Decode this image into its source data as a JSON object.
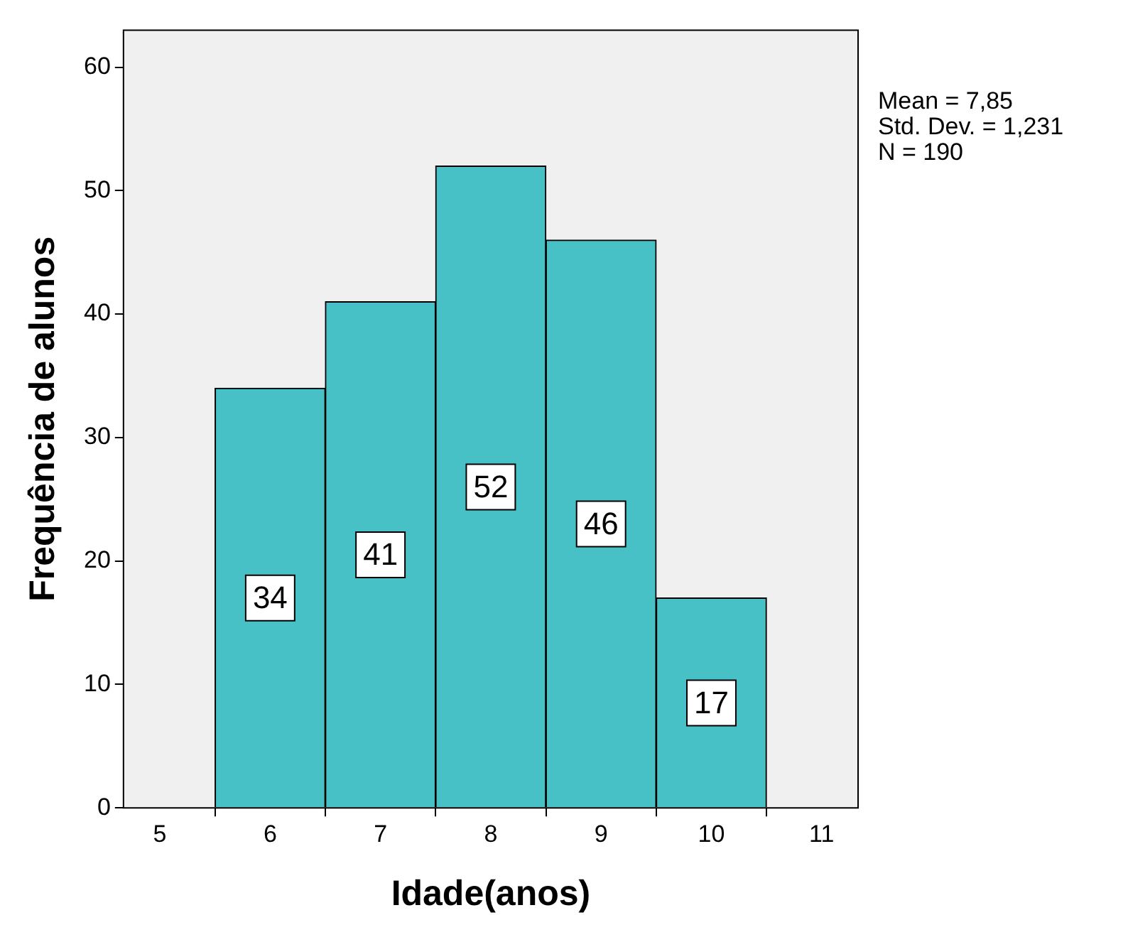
{
  "chart_data": {
    "type": "histogram",
    "xlabel": "Idade(anos)",
    "ylabel": "Frequência de alunos",
    "bins": [
      5.5,
      6.5,
      7.5,
      8.5,
      9.5,
      10.5
    ],
    "values": [
      34,
      41,
      52,
      46,
      17
    ],
    "color": "#48c1c6",
    "xlim": [
      4.67,
      11.33
    ],
    "xticks": [
      5,
      6,
      7,
      8,
      9,
      10,
      11
    ],
    "ylim": [
      0,
      63
    ],
    "yticks": [
      0,
      10,
      20,
      30,
      40,
      50,
      60
    ],
    "data_labels": true,
    "grid": false,
    "legend": false,
    "annotations": [
      "Mean = 7,85",
      "Std. Dev. = 1,231",
      "N = 190"
    ]
  }
}
